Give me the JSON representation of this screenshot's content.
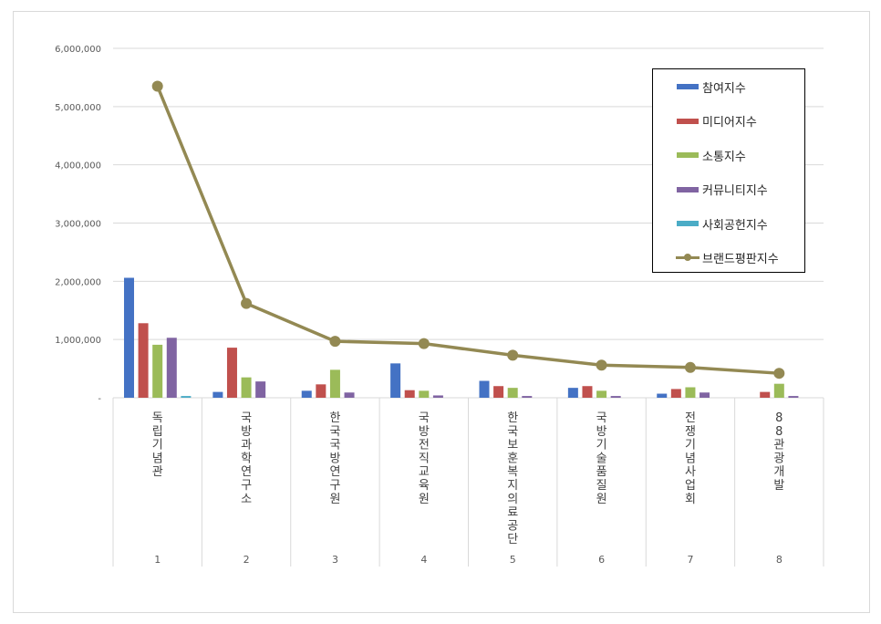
{
  "chart_data": {
    "type": "bar",
    "categories": [
      "1",
      "2",
      "3",
      "4",
      "5",
      "6",
      "7",
      "8"
    ],
    "category_names": [
      "독립기념관",
      "국방과학연구소",
      "한국국방연구원",
      "국방전직교육원",
      "한국보훈복지의료공단",
      "국방기술품질원",
      "전쟁기념사업회",
      "88관광개발"
    ],
    "series": [
      {
        "name": "참여지수",
        "kind": "bar",
        "color": "#4472c4",
        "values": [
          2060000,
          100000,
          120000,
          590000,
          290000,
          170000,
          70000,
          0
        ]
      },
      {
        "name": "미디어지수",
        "kind": "bar",
        "color": "#c0504d",
        "values": [
          1280000,
          860000,
          230000,
          130000,
          200000,
          200000,
          150000,
          100000
        ]
      },
      {
        "name": "소통지수",
        "kind": "bar",
        "color": "#9bbb59",
        "values": [
          910000,
          350000,
          480000,
          120000,
          170000,
          120000,
          180000,
          240000
        ]
      },
      {
        "name": "커뮤니티지수",
        "kind": "bar",
        "color": "#8064a2",
        "values": [
          1030000,
          280000,
          90000,
          40000,
          30000,
          30000,
          90000,
          30000
        ]
      },
      {
        "name": "사회공헌지수",
        "kind": "bar",
        "color": "#4bacc6",
        "values": [
          30000,
          0,
          0,
          0,
          0,
          0,
          0,
          0
        ]
      },
      {
        "name": "브랜드평판지수",
        "kind": "line",
        "color": "#938953",
        "values": [
          5350000,
          1620000,
          970000,
          930000,
          730000,
          560000,
          520000,
          420000
        ]
      }
    ],
    "y_ticks": [
      "-",
      "1,000,000",
      "2,000,000",
      "3,000,000",
      "4,000,000",
      "5,000,000",
      "6,000,000"
    ],
    "ylim": [
      0,
      6000000
    ],
    "grid": true,
    "legend_position": "top-right"
  }
}
